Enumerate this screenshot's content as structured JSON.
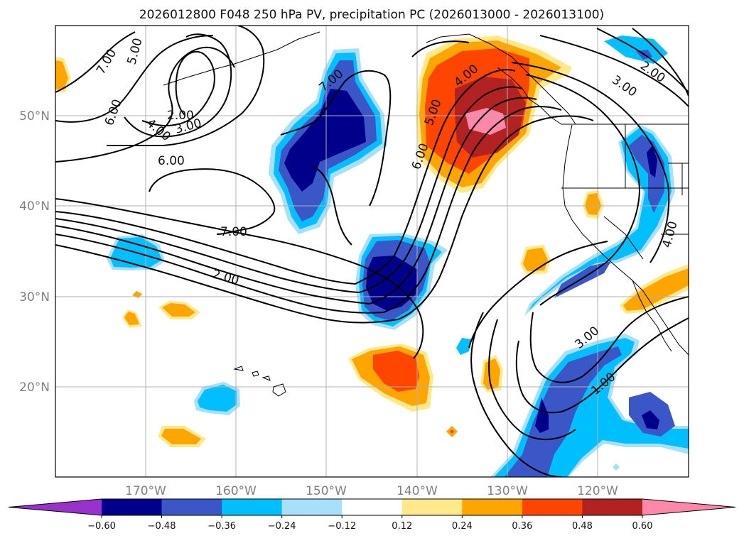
{
  "title": "2026012800 F048 250 hPa PV, precipitation PC (2026013000 - 2026013100)",
  "map": {
    "lon_ticks": [
      "170°W",
      "160°W",
      "150°W",
      "140°W",
      "130°W",
      "120°W"
    ],
    "lat_ticks": [
      "50°N",
      "40°N",
      "30°N",
      "20°N"
    ],
    "extent": {
      "lon_min": -180,
      "lon_max": -110,
      "lat_min": 10,
      "lat_max": 60
    },
    "gridlines": true
  },
  "pv_contour_labels": {
    "l700a": "7.00",
    "l500": "5.00",
    "l600a": "6.00",
    "l400a": "4.00",
    "l200a": "2.00",
    "l300a": "3.00",
    "l600b": "6.00",
    "l700b": "7.00",
    "l700c": "7.00",
    "l200b": "2.00",
    "l500b": "5.00",
    "l400b": "4.00",
    "l600c": "6.00",
    "l200c": "2.00",
    "l300b": "3.00",
    "l400c": "4.00",
    "l300c": "3.00",
    "l100": "1.00"
  },
  "colorbar": {
    "ticks": [
      "−0.60",
      "−0.48",
      "−0.36",
      "−0.24",
      "−0.12",
      "0.12",
      "0.24",
      "0.36",
      "0.48",
      "0.60"
    ],
    "colors": [
      "#9932cc",
      "#00008b",
      "#3a56c7",
      "#00bfff",
      "#a8e0fa",
      "#ffffff",
      "#ffe98a",
      "#ffa500",
      "#ff4500",
      "#b22222",
      "#ff88aa"
    ],
    "extend": "both"
  }
}
